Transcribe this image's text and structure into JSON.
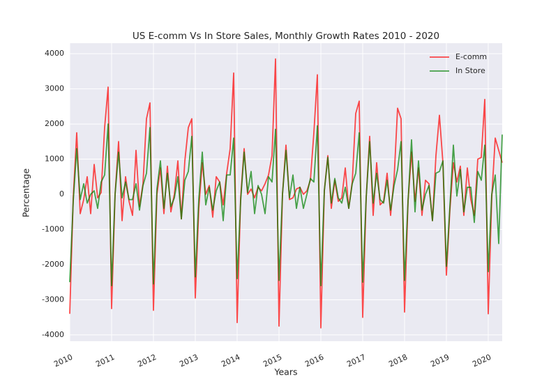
{
  "chart_data": {
    "type": "line",
    "title": "US E-comm Vs In Store Sales, Monthly Growth Rates 2010 - 2020",
    "xlabel": "Years",
    "ylabel": "Percentage",
    "x": [
      "2010-01",
      "2010-02",
      "2010-03",
      "2010-04",
      "2010-05",
      "2010-06",
      "2010-07",
      "2010-08",
      "2010-09",
      "2010-10",
      "2010-11",
      "2010-12",
      "2011-01",
      "2011-02",
      "2011-03",
      "2011-04",
      "2011-05",
      "2011-06",
      "2011-07",
      "2011-08",
      "2011-09",
      "2011-10",
      "2011-11",
      "2011-12",
      "2012-01",
      "2012-02",
      "2012-03",
      "2012-04",
      "2012-05",
      "2012-06",
      "2012-07",
      "2012-08",
      "2012-09",
      "2012-10",
      "2012-11",
      "2012-12",
      "2013-01",
      "2013-02",
      "2013-03",
      "2013-04",
      "2013-05",
      "2013-06",
      "2013-07",
      "2013-08",
      "2013-09",
      "2013-10",
      "2013-11",
      "2013-12",
      "2014-01",
      "2014-02",
      "2014-03",
      "2014-04",
      "2014-05",
      "2014-06",
      "2014-07",
      "2014-08",
      "2014-09",
      "2014-10",
      "2014-11",
      "2014-12",
      "2015-01",
      "2015-02",
      "2015-03",
      "2015-04",
      "2015-05",
      "2015-06",
      "2015-07",
      "2015-08",
      "2015-09",
      "2015-10",
      "2015-11",
      "2015-12",
      "2016-01",
      "2016-02",
      "2016-03",
      "2016-04",
      "2016-05",
      "2016-06",
      "2016-07",
      "2016-08",
      "2016-09",
      "2016-10",
      "2016-11",
      "2016-12",
      "2017-01",
      "2017-02",
      "2017-03",
      "2017-04",
      "2017-05",
      "2017-06",
      "2017-07",
      "2017-08",
      "2017-09",
      "2017-10",
      "2017-11",
      "2017-12",
      "2018-01",
      "2018-02",
      "2018-03",
      "2018-04",
      "2018-05",
      "2018-06",
      "2018-07",
      "2018-08",
      "2018-09",
      "2018-10",
      "2018-11",
      "2018-12",
      "2019-01",
      "2019-02",
      "2019-03",
      "2019-04",
      "2019-05",
      "2019-06",
      "2019-07",
      "2019-08",
      "2019-09",
      "2019-10",
      "2019-11",
      "2019-12",
      "2020-01",
      "2020-02",
      "2020-03",
      "2020-04",
      "2020-05"
    ],
    "series": [
      {
        "name": "E-comm",
        "color": "red",
        "values": [
          -3400,
          -100,
          1750,
          -550,
          -150,
          500,
          -550,
          850,
          -100,
          50,
          1900,
          3050,
          -3250,
          0,
          1500,
          -750,
          500,
          -200,
          -600,
          1250,
          -350,
          300,
          2150,
          2600,
          -3300,
          0,
          750,
          -550,
          800,
          -500,
          0,
          950,
          -700,
          950,
          1900,
          2150,
          -2950,
          -400,
          900,
          0,
          250,
          -650,
          500,
          350,
          -300,
          600,
          1300,
          3450,
          -3650,
          -100,
          1300,
          0,
          150,
          -100,
          200,
          100,
          300,
          550,
          1100,
          3850,
          -3750,
          0,
          1400,
          -150,
          -100,
          150,
          200,
          0,
          100,
          400,
          1750,
          3400,
          -3800,
          100,
          1100,
          -400,
          400,
          -200,
          -100,
          750,
          -400,
          350,
          2300,
          2650,
          -3500,
          -100,
          1650,
          -600,
          900,
          -300,
          -200,
          600,
          -600,
          450,
          2450,
          2150,
          -3350,
          -200,
          1200,
          -200,
          750,
          -600,
          400,
          300,
          -750,
          1100,
          2250,
          900,
          -2300,
          -450,
          900,
          350,
          800,
          -600,
          750,
          -150,
          -600,
          1000,
          1050,
          2700,
          -3400,
          -100,
          1600,
          1250,
          900
        ]
      },
      {
        "name": "In Store",
        "color": "green",
        "values": [
          -2500,
          -200,
          1300,
          -150,
          300,
          -250,
          0,
          100,
          -400,
          350,
          550,
          2000,
          -2600,
          0,
          1200,
          -100,
          350,
          -150,
          -150,
          300,
          -450,
          250,
          600,
          1900,
          -2550,
          150,
          950,
          -400,
          600,
          -350,
          -100,
          500,
          -700,
          400,
          650,
          1650,
          -2350,
          -150,
          1200,
          -300,
          200,
          -450,
          100,
          350,
          -750,
          550,
          550,
          1600,
          -2400,
          -200,
          1200,
          50,
          650,
          -550,
          250,
          0,
          -550,
          500,
          350,
          1850,
          -2450,
          0,
          1250,
          -100,
          550,
          -400,
          200,
          -400,
          0,
          450,
          350,
          1950,
          -2600,
          100,
          1050,
          -250,
          450,
          -100,
          -250,
          200,
          -400,
          300,
          600,
          1750,
          -2500,
          -100,
          1500,
          -250,
          600,
          -150,
          -250,
          400,
          -450,
          250,
          700,
          1500,
          -2450,
          -200,
          1550,
          -500,
          950,
          -450,
          0,
          250,
          -750,
          600,
          650,
          950,
          -2050,
          -350,
          1400,
          -50,
          700,
          -500,
          200,
          200,
          -800,
          650,
          400,
          1400,
          -2200,
          0,
          550,
          -1400,
          1700
        ]
      }
    ],
    "alpha": 0.7,
    "xlim": [
      "2010-01",
      "2020-05"
    ],
    "xticks": [
      {
        "value": "2010-01",
        "label": "2010"
      },
      {
        "value": "2011-01",
        "label": "2011"
      },
      {
        "value": "2012-01",
        "label": "2012"
      },
      {
        "value": "2013-01",
        "label": "2013"
      },
      {
        "value": "2014-01",
        "label": "2014"
      },
      {
        "value": "2015-01",
        "label": "2015"
      },
      {
        "value": "2016-01",
        "label": "2016"
      },
      {
        "value": "2017-01",
        "label": "2017"
      },
      {
        "value": "2018-01",
        "label": "2018"
      },
      {
        "value": "2019-01",
        "label": "2019"
      },
      {
        "value": "2020-01",
        "label": "2020"
      }
    ],
    "ylim": [
      -4180,
      4300
    ],
    "yticks": [
      -4000,
      -3000,
      -2000,
      -1000,
      0,
      1000,
      2000,
      3000,
      4000
    ],
    "grid": true,
    "legend": "upper right"
  }
}
